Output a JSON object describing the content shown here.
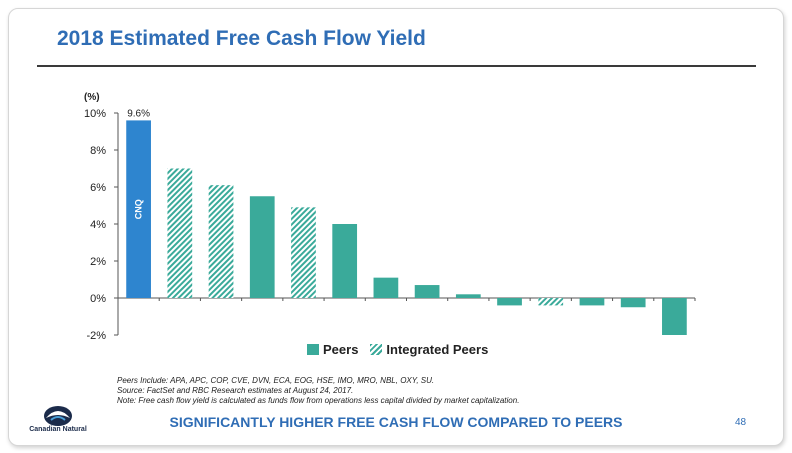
{
  "title": "2018 Estimated Free Cash Flow Yield",
  "chart_data": {
    "type": "bar",
    "ylabel": "(%)",
    "ylim": [
      -2,
      10
    ],
    "yticks": [
      "10%",
      "8%",
      "6%",
      "4%",
      "2%",
      "0%",
      "-2%"
    ],
    "ytick_values": [
      10,
      8,
      6,
      4,
      2,
      0,
      -2
    ],
    "series": [
      {
        "name": "CNQ",
        "style": "solid",
        "color": "#2e85cf",
        "values": [
          9.6,
          null,
          null,
          null,
          null,
          null,
          null,
          null,
          null,
          null,
          null,
          null,
          null,
          null
        ]
      },
      {
        "name": "Peers",
        "style": "solid",
        "color": "#3aaa9a",
        "values": [
          null,
          null,
          null,
          5.5,
          null,
          4.0,
          1.1,
          0.7,
          0.2,
          -0.4,
          null,
          -0.4,
          -0.5,
          -2.0
        ]
      },
      {
        "name": "Integrated Peers",
        "style": "hatched",
        "color": "#3aaa9a",
        "values": [
          null,
          7.0,
          6.1,
          null,
          4.9,
          null,
          null,
          null,
          null,
          null,
          -0.4,
          null,
          null,
          null
        ]
      }
    ],
    "bar_labels": [
      "CNQ"
    ],
    "data_labels": [
      "9.6%"
    ],
    "legend_position": "bottom"
  },
  "legend": {
    "peers": "Peers",
    "integrated": "Integrated Peers"
  },
  "notes": [
    "Peers Include: APA, APC, COP, CVE, DVN, ECA, EOG, HSE, IMO, MRO, NBL, OXY, SU.",
    "Source: FactSet and RBC Research estimates at August 24, 2017.",
    "Note: Free cash flow yield is calculated as funds flow from operations less capital divided by market capitalization."
  ],
  "logo_text": "Canadian Natural",
  "tagline": "SIGNIFICANTLY HIGHER FREE CASH FLOW COMPARED TO PEERS",
  "page_number": "48"
}
